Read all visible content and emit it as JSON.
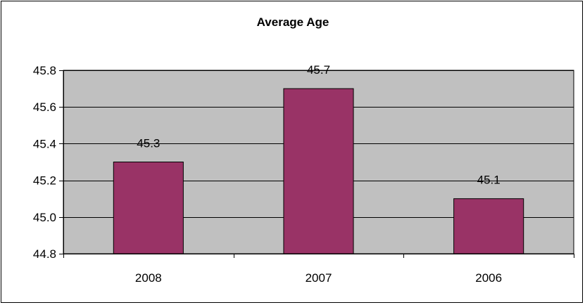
{
  "chart_data": {
    "type": "bar",
    "title": "Average Age",
    "xlabel": "",
    "ylabel": "",
    "categories": [
      "2008",
      "2007",
      "2006"
    ],
    "values": [
      45.3,
      45.7,
      45.1
    ],
    "data_labels": [
      "45.3",
      "45.7",
      "45.1"
    ],
    "ylim": [
      44.8,
      45.8
    ],
    "yticks": [
      44.8,
      45.0,
      45.2,
      45.4,
      45.6,
      45.8
    ],
    "ytick_labels": [
      "44.8",
      "45.0",
      "45.2",
      "45.4",
      "45.6",
      "45.8"
    ],
    "grid": true,
    "legend": "none",
    "colors": {
      "bar": "#993366",
      "plot_background": "#c0c0c0",
      "gridline": "#000000",
      "frame": "#000000"
    }
  }
}
